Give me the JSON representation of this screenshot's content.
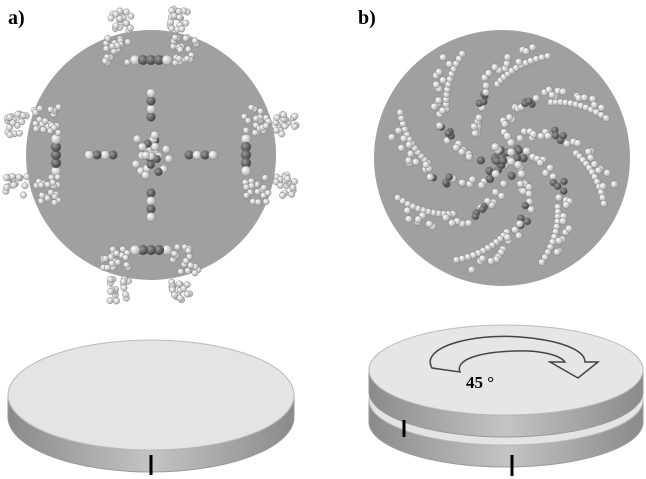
{
  "panels": [
    {
      "label": "a)"
    },
    {
      "label": "b)",
      "annotation": "45 °"
    }
  ]
}
